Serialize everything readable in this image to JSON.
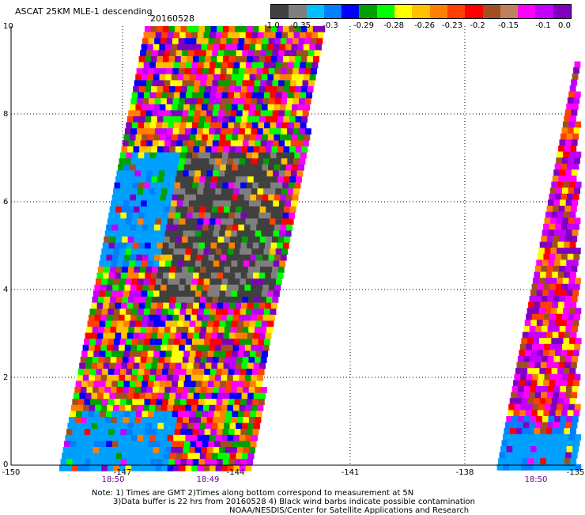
{
  "title": "ASCAT 25KM MLE-1 descending",
  "date": "20160528",
  "colorbar": {
    "colors": [
      "#404040",
      "#7f7f7f",
      "#00c0ff",
      "#0080ff",
      "#0000ff",
      "#00a000",
      "#00ff00",
      "#ffff00",
      "#ffc000",
      "#ff8000",
      "#ff4000",
      "#ff0000",
      "#a05020",
      "#c08060",
      "#ff00ff",
      "#c000ff",
      "#8000c0"
    ],
    "labels": [
      "-1.0",
      "-0.35",
      "-0.3",
      "-0.29",
      "-0.28",
      "-0.26",
      "-0.23",
      "-0.2",
      "-0.15",
      "-0.1",
      "0.0"
    ]
  },
  "axes": {
    "y_ticks": [
      "10",
      "8",
      "6",
      "4",
      "2",
      "0"
    ],
    "x_ticks": [
      "-150",
      "-147",
      "-144",
      "-141",
      "-138",
      "-135"
    ]
  },
  "times": [
    "18:50",
    "18:49",
    "18:50"
  ],
  "notes": [
    "Note: 1) Times are GMT 2)Times along bottom correspond to measurement at 5N",
    "3)Data buffer is 22 hrs from 20160528 4) Black wind barbs indicate possible contamination",
    "NOAA/NESDIS/Center for Satellite Applications and Research"
  ]
}
